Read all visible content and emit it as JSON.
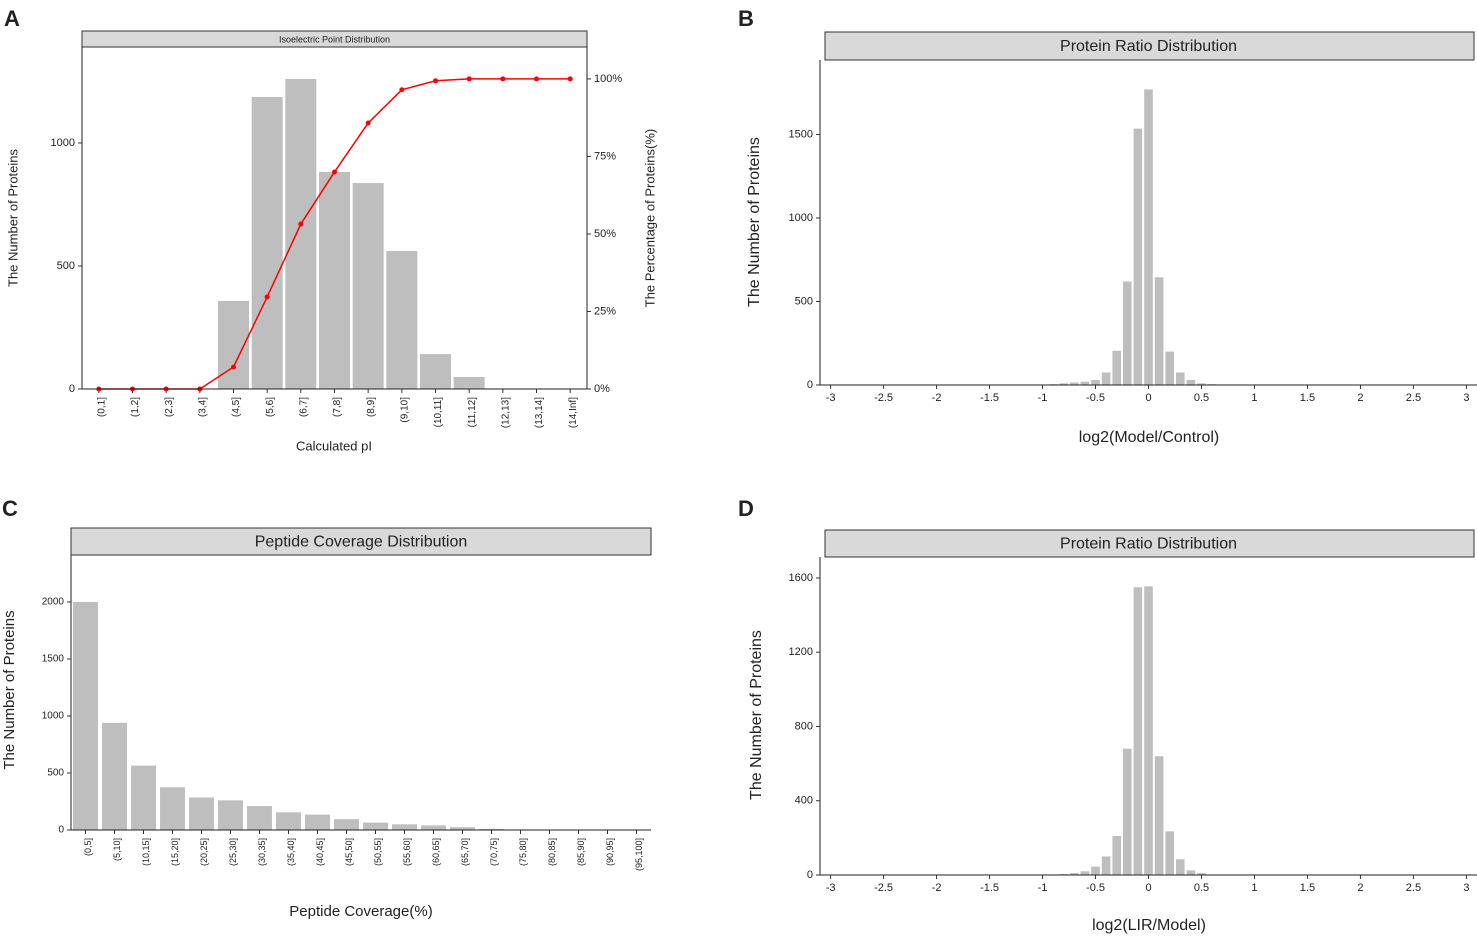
{
  "chart_data": [
    {
      "type": "bar",
      "label": "A",
      "title": "Isoelectric Point Distribution",
      "xlabel": "Calculated pI",
      "ylabel": "The Number of Proteins",
      "y2label": "The Percentage of Proteins(%)",
      "categories": [
        "(0,1]",
        "(1,2]",
        "(2,3]",
        "(3,4]",
        "(4,5]",
        "(5,6]",
        "(6,7]",
        "(7,8]",
        "(8,9]",
        "(9,10]",
        "(10,11]",
        "(11,12]",
        "(12,13]",
        "(13,14]",
        "(14,Inf]"
      ],
      "values": [
        0,
        0,
        0,
        0,
        358,
        1187,
        1260,
        882,
        837,
        561,
        142,
        49,
        0,
        0,
        0
      ],
      "color": "#bebebe",
      "ylim": [
        0,
        1390
      ],
      "yticks": [
        0,
        500,
        1000
      ],
      "line": {
        "axis": "y2",
        "color": "#ff0000",
        "values": [
          0,
          0,
          0,
          0,
          7.1,
          29.7,
          53.2,
          70,
          85.8,
          96.5,
          99.4,
          100,
          100,
          100,
          100
        ]
      },
      "y2lim": [
        0,
        110.3
      ],
      "y2ticks": [
        {
          "value": 0,
          "label": "0%"
        },
        {
          "value": 25,
          "label": "25%"
        },
        {
          "value": 50,
          "label": "50%"
        },
        {
          "value": 75,
          "label": "75%"
        },
        {
          "value": 100,
          "label": "100%"
        }
      ]
    },
    {
      "type": "histogram",
      "label": "B",
      "title": "Protein Ratio Distribution",
      "xlabel": "log2(Model/Control)",
      "ylabel": "The Number of Proteins",
      "bins": [
        -1.05,
        -0.95,
        -0.85,
        -0.75,
        -0.65,
        -0.55,
        -0.45,
        -0.35,
        -0.25,
        -0.15,
        -0.05,
        0.05,
        0.15,
        0.25,
        0.35,
        0.45,
        0.55,
        0.65
      ],
      "values": [
        2,
        5,
        10,
        15,
        20,
        30,
        75,
        205,
        620,
        1535,
        1770,
        645,
        200,
        75,
        30,
        10,
        5
      ],
      "color": "#bebebe",
      "xlim": [
        -3.1,
        3.1
      ],
      "xticks": [
        -3,
        -2.5,
        -2,
        -1.5,
        -1,
        -0.5,
        0,
        0.5,
        1,
        1.5,
        2,
        2.5,
        3
      ],
      "ylim": [
        0,
        1946
      ],
      "yticks": [
        0,
        500,
        1000,
        1500
      ]
    },
    {
      "type": "bar",
      "label": "C",
      "title": "Peptide Coverage Distribution",
      "xlabel": "Peptide Coverage(%)",
      "ylabel": "The Number of Proteins",
      "categories": [
        "(0,5]",
        "(5,10]",
        "(10,15]",
        "(15,20]",
        "(20,25]",
        "(25,30]",
        "(30,35]",
        "(35,40]",
        "(40,45]",
        "(45,50]",
        "(50,55]",
        "(55,60]",
        "(60,65]",
        "(65,70]",
        "(70,75]",
        "(75,80]",
        "(80,85]",
        "(85,90]",
        "(90,95]",
        "(95,100]"
      ],
      "values": [
        2000,
        940,
        565,
        375,
        285,
        260,
        210,
        155,
        135,
        95,
        65,
        50,
        40,
        25,
        10,
        5,
        3,
        2,
        1,
        1
      ],
      "color": "#bebebe",
      "ylim": [
        0,
        2412
      ],
      "yticks": [
        0,
        500,
        1000,
        1500,
        2000
      ]
    },
    {
      "type": "histogram",
      "label": "D",
      "title": "Protein Ratio Distribution",
      "xlabel": "log2(LIR/Model)",
      "ylabel": "The Number of Proteins",
      "bins": [
        -1.05,
        -0.95,
        -0.85,
        -0.75,
        -0.65,
        -0.55,
        -0.45,
        -0.35,
        -0.25,
        -0.15,
        -0.05,
        0.05,
        0.15,
        0.25,
        0.35,
        0.45,
        0.55,
        0.65
      ],
      "values": [
        2,
        3,
        5,
        10,
        20,
        45,
        100,
        210,
        680,
        1550,
        1555,
        640,
        235,
        85,
        25,
        10,
        3
      ],
      "color": "#bebebe",
      "xlim": [
        -3.1,
        3.1
      ],
      "xticks": [
        -3,
        -2.5,
        -2,
        -1.5,
        -1,
        -0.5,
        0,
        0.5,
        1,
        1.5,
        2,
        2.5,
        3
      ],
      "ylim": [
        0,
        1713
      ],
      "yticks": [
        0,
        400,
        800,
        1200,
        1600
      ]
    }
  ]
}
